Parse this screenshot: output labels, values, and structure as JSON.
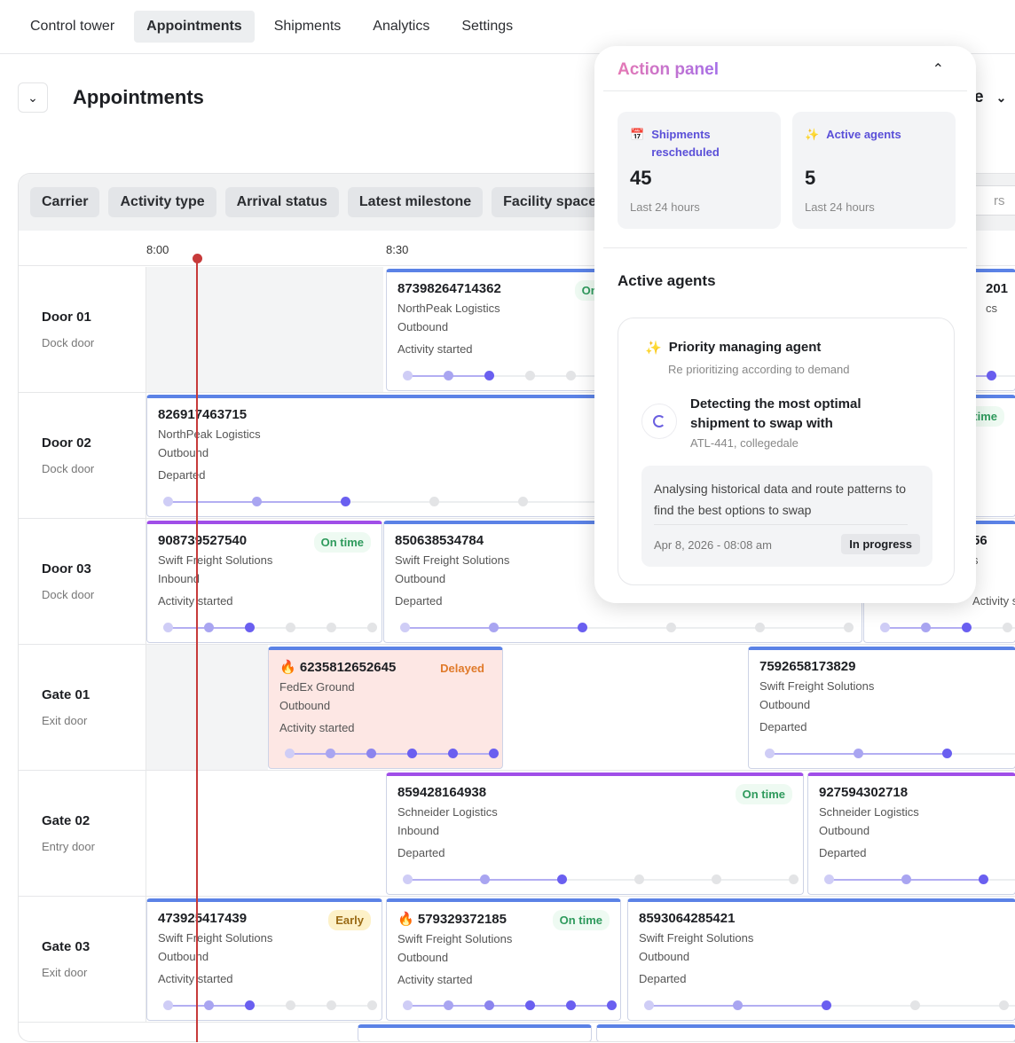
{
  "nav": {
    "tabs": [
      {
        "label": "Control tower",
        "active": false
      },
      {
        "label": "Appointments",
        "active": true
      },
      {
        "label": "Shipments",
        "active": false
      },
      {
        "label": "Analytics",
        "active": false
      },
      {
        "label": "Settings",
        "active": false
      }
    ]
  },
  "page": {
    "title": "Appointments",
    "view_select_partial": "e"
  },
  "filters": [
    "Carrier",
    "Activity type",
    "Arrival status",
    "Latest milestone",
    "Facility space"
  ],
  "search": {
    "placeholder_partial": "rs"
  },
  "timeline": {
    "ticks": [
      "8:00",
      "8:30"
    ],
    "current_time_indicator": true
  },
  "rows": [
    {
      "name": "Door 01",
      "type": "Dock door"
    },
    {
      "name": "Door 02",
      "type": "Dock door"
    },
    {
      "name": "Door 03",
      "type": "Dock door"
    },
    {
      "name": "Gate 01",
      "type": "Exit door"
    },
    {
      "name": "Gate 02",
      "type": "Entry door"
    },
    {
      "name": "Gate 03",
      "type": "Exit door"
    }
  ],
  "colors": {
    "accent": "#6a5ff0",
    "on_time": "#2e9a5c",
    "delayed": "#e07a2a",
    "now_line": "#c73a3a",
    "bar_blue": "#5b82e6",
    "bar_purple": "#a04ee8"
  },
  "cards": [
    {
      "row": 0,
      "id": "87398264714362",
      "badge": "On time",
      "carrier": "NorthPeak Logistics",
      "direction": "Outbound",
      "milestone": "Activity started",
      "steps": 6,
      "completed": 3
    },
    {
      "row": 0,
      "id": "201",
      "carrier": "cs",
      "steps": 6,
      "completed": 3
    },
    {
      "row": 1,
      "id": "826917463715",
      "badge": "On time",
      "carrier": "NorthPeak Logistics",
      "direction": "Outbound",
      "milestone": "Departed",
      "steps": 6,
      "completed": 3
    },
    {
      "row": 2,
      "id": "908739527540",
      "badge": "On time",
      "carrier": "Swift Freight Solutions",
      "direction": "Inbound",
      "milestone": "Activity started",
      "steps": 6,
      "completed": 3,
      "bar": "purple"
    },
    {
      "row": 2,
      "id": "850638534784",
      "carrier": "Swift Freight Solutions",
      "direction": "Outbound",
      "milestone": "Departed",
      "steps": 6,
      "completed": 3
    },
    {
      "row": 2,
      "id": "56",
      "carrier": "s",
      "milestone": "Activity started",
      "steps": 6,
      "completed": 3
    },
    {
      "row": 3,
      "id": "6235812652645",
      "flame": true,
      "badge": "Delayed",
      "carrier": "FedEx Ground",
      "direction": "Outbound",
      "milestone": "Activity started",
      "steps": 6,
      "completed": 6,
      "alert": true
    },
    {
      "row": 3,
      "id": "7592658173829",
      "carrier": "Swift Freight Solutions",
      "direction": "Outbound",
      "milestone": "Departed",
      "steps": 6,
      "completed": 3
    },
    {
      "row": 4,
      "id": "859428164938",
      "badge": "On time",
      "carrier": "Schneider Logistics",
      "direction": "Inbound",
      "milestone": "Departed",
      "steps": 6,
      "completed": 3,
      "bar": "purple"
    },
    {
      "row": 4,
      "id": "927594302718",
      "carrier": "Schneider Logistics",
      "direction": "Outbound",
      "milestone": "Departed",
      "steps": 6,
      "completed": 3,
      "bar": "purple"
    },
    {
      "row": 5,
      "id": "473925417439",
      "badge": "Early",
      "carrier": "Swift Freight Solutions",
      "direction": "Outbound",
      "milestone": "Activity started",
      "steps": 6,
      "completed": 3
    },
    {
      "row": 5,
      "id": "579329372185",
      "flame": true,
      "badge": "On time",
      "carrier": "Swift Freight Solutions",
      "direction": "Outbound",
      "milestone": "Activity started",
      "steps": 6,
      "completed": 6
    },
    {
      "row": 5,
      "id": "8593064285421",
      "carrier": "Swift Freight Solutions",
      "direction": "Outbound",
      "milestone": "Departed",
      "steps": 6,
      "completed": 3
    },
    {
      "row": 6,
      "id": ""
    },
    {
      "row": 6,
      "id": ""
    }
  ],
  "action_panel": {
    "title": "Action panel",
    "stats": [
      {
        "label": "Shipments rescheduled",
        "icon": "calendar-icon",
        "value": "45",
        "sub": "Last 24 hours"
      },
      {
        "label": "Active agents",
        "icon": "sparkle-icon",
        "value": "5",
        "sub": "Last 24 hours"
      }
    ],
    "section_title": "Active agents",
    "agent": {
      "name": "Priority managing agent",
      "description": "Re prioritizing according to demand",
      "task": "Detecting the most optimal shipment to swap with",
      "task_sub": "ATL-441, collegedale",
      "note": "Analysing historical data and route patterns to find the best options to swap",
      "timestamp": "Apr 8, 2026 - 08:08 am",
      "status": "In progress"
    }
  }
}
